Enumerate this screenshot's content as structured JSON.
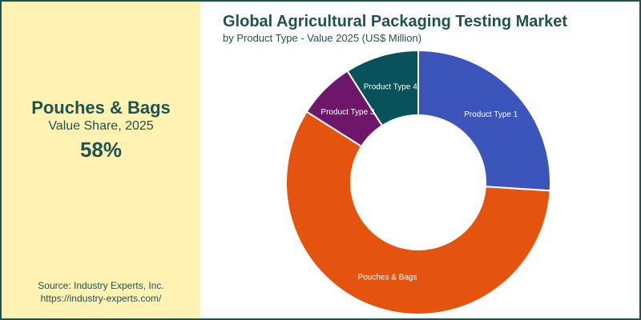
{
  "highlight": {
    "name": "Pouches & Bags",
    "caption": "Value Share, 2025",
    "value": "58%"
  },
  "source": {
    "line1": "Source: Industry Experts, Inc.",
    "line2": "https://industry-experts.com/"
  },
  "chart_data": {
    "type": "pie",
    "donut": true,
    "title": "Global Agricultural Packaging Testing Market",
    "subtitle": "by Product Type - Value 2025 (US$ Million)",
    "legend": "none (labels on slices)",
    "slices": [
      {
        "label": "Product Type 1",
        "value": 26,
        "color": "#3b55bb"
      },
      {
        "label": "Pouches & Bags",
        "value": 58,
        "color": "#e5540f"
      },
      {
        "label": "Product Type 3",
        "value": 7,
        "color": "#6e166a"
      },
      {
        "label": "Product Type 4",
        "value": 9,
        "color": "#07525b"
      }
    ]
  }
}
